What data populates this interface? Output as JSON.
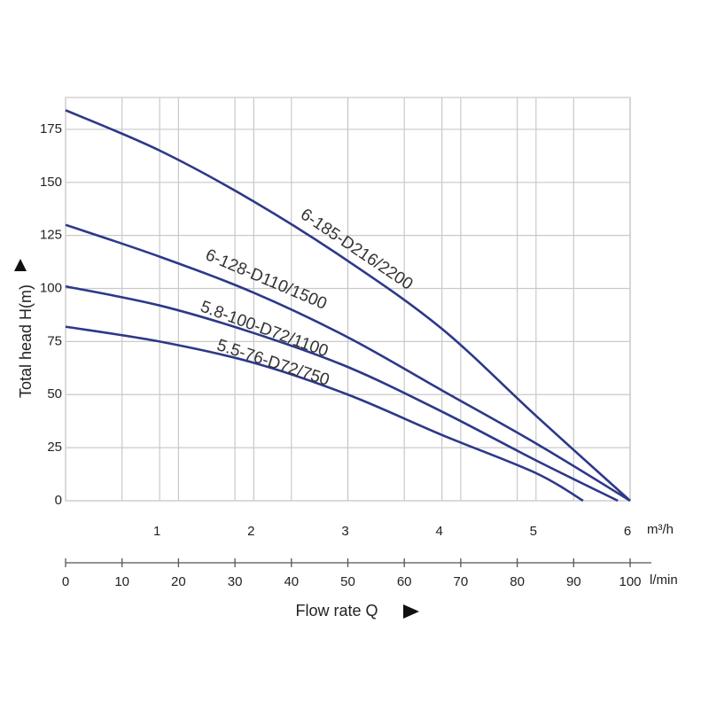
{
  "chart_data": {
    "type": "line",
    "y_label": "Total head H(m)",
    "x_label": "Flow rate Q",
    "x_unit": "m³/h",
    "x2_unit": "l/min",
    "xlim": [
      0,
      6
    ],
    "xticks": [
      1,
      2,
      3,
      4,
      5,
      6
    ],
    "x2lim": [
      0,
      100
    ],
    "x2ticks": [
      0,
      10,
      20,
      30,
      40,
      50,
      60,
      70,
      80,
      90,
      100
    ],
    "ylim": [
      0,
      190
    ],
    "yticks": [
      0,
      25,
      50,
      75,
      100,
      125,
      150,
      175
    ],
    "grid": true,
    "series": [
      {
        "name": "6-185-D216/2200",
        "color": "#2d3889",
        "x": [
          0,
          1,
          2,
          3,
          4,
          5,
          6
        ],
        "values": [
          184,
          165,
          141,
          113,
          81,
          40,
          0
        ]
      },
      {
        "name": "6-128-D110/1500",
        "color": "#2d3889",
        "x": [
          0,
          1,
          2,
          3,
          4,
          5,
          6
        ],
        "values": [
          130,
          115,
          98,
          77,
          52,
          27,
          0
        ]
      },
      {
        "name": "5.8-100-D72/1100",
        "color": "#2d3889",
        "x": [
          0,
          1,
          2,
          3,
          4,
          5,
          5.87
        ],
        "values": [
          101,
          92,
          79,
          63,
          42,
          19,
          0
        ]
      },
      {
        "name": "5.5-76-D72/750",
        "color": "#2d3889",
        "x": [
          0,
          1,
          2,
          3,
          4,
          5,
          5.5
        ],
        "values": [
          82,
          75,
          65,
          50,
          31,
          13,
          0
        ]
      }
    ]
  }
}
